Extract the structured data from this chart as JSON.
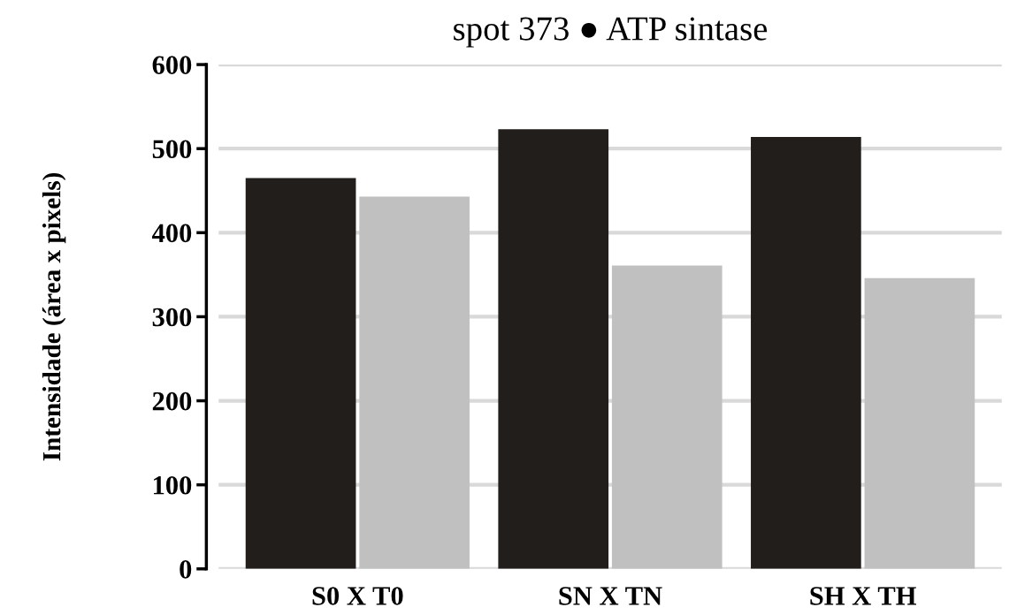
{
  "chart_data": {
    "type": "bar",
    "title": "spot 373 ● ATP sintase",
    "ylabel": "Intensidade (área x pixels)",
    "categories": [
      "S0 X T0",
      "SN X TN",
      "SH X TH"
    ],
    "series": [
      {
        "color": "#221e1c",
        "values": [
          465,
          523,
          514
        ]
      },
      {
        "color": "#c0c0c0",
        "values": [
          443,
          361,
          346
        ]
      }
    ],
    "ylim": [
      0,
      600
    ],
    "yticks": [
      0,
      100,
      200,
      300,
      400,
      500,
      600
    ],
    "grid": "y",
    "legend": false
  }
}
